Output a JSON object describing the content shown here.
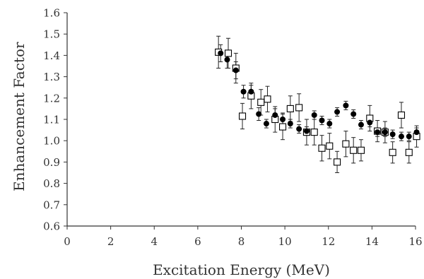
{
  "chart_data": {
    "type": "scatter",
    "xlabel": "Excitation Energy (MeV)",
    "ylabel": "Enhancement Factor",
    "xlim": [
      0,
      16
    ],
    "ylim": [
      0.6,
      1.6
    ],
    "xticks": [
      "0",
      "2",
      "4",
      "6",
      "8",
      "10",
      "12",
      "14",
      "16"
    ],
    "yticks": [
      "0.6",
      "0.7",
      "0.8",
      "0.9",
      "1.0",
      "1.1",
      "1.2",
      "1.3",
      "1.4",
      "1.5",
      "1.6"
    ],
    "grid": false,
    "legend": false,
    "series": [
      {
        "marker": "filled-circle",
        "color": "#000000",
        "points": [
          {
            "x": 7.05,
            "y": 1.41,
            "err": 0.04
          },
          {
            "x": 7.35,
            "y": 1.38,
            "err": 0.04
          },
          {
            "x": 7.75,
            "y": 1.33,
            "err": 0.04
          },
          {
            "x": 8.1,
            "y": 1.23,
            "err": 0.03
          },
          {
            "x": 8.45,
            "y": 1.23,
            "err": 0.03
          },
          {
            "x": 8.8,
            "y": 1.125,
            "err": 0.03
          },
          {
            "x": 9.15,
            "y": 1.08,
            "err": 0.02
          },
          {
            "x": 9.55,
            "y": 1.12,
            "err": 0.03
          },
          {
            "x": 9.9,
            "y": 1.1,
            "err": 0.03
          },
          {
            "x": 10.25,
            "y": 1.08,
            "err": 0.02
          },
          {
            "x": 10.65,
            "y": 1.055,
            "err": 0.02
          },
          {
            "x": 11.0,
            "y": 1.045,
            "err": 0.02
          },
          {
            "x": 11.35,
            "y": 1.12,
            "err": 0.02
          },
          {
            "x": 11.7,
            "y": 1.095,
            "err": 0.02
          },
          {
            "x": 12.05,
            "y": 1.08,
            "err": 0.02
          },
          {
            "x": 12.4,
            "y": 1.135,
            "err": 0.02
          },
          {
            "x": 12.8,
            "y": 1.165,
            "err": 0.02
          },
          {
            "x": 13.15,
            "y": 1.125,
            "err": 0.02
          },
          {
            "x": 13.5,
            "y": 1.075,
            "err": 0.02
          },
          {
            "x": 13.9,
            "y": 1.085,
            "err": 0.02
          },
          {
            "x": 14.25,
            "y": 1.04,
            "err": 0.02
          },
          {
            "x": 14.6,
            "y": 1.04,
            "err": 0.02
          },
          {
            "x": 14.95,
            "y": 1.03,
            "err": 0.02
          },
          {
            "x": 15.35,
            "y": 1.02,
            "err": 0.02
          },
          {
            "x": 15.7,
            "y": 1.02,
            "err": 0.02
          },
          {
            "x": 16.05,
            "y": 1.04,
            "err": 0.02
          }
        ]
      },
      {
        "marker": "open-square",
        "color": "#000000",
        "points": [
          {
            "x": 6.95,
            "y": 1.415,
            "err": 0.075
          },
          {
            "x": 7.4,
            "y": 1.41,
            "err": 0.07
          },
          {
            "x": 7.75,
            "y": 1.34,
            "err": 0.07
          },
          {
            "x": 8.05,
            "y": 1.115,
            "err": 0.06
          },
          {
            "x": 8.45,
            "y": 1.21,
            "err": 0.06
          },
          {
            "x": 8.9,
            "y": 1.18,
            "err": 0.06
          },
          {
            "x": 9.2,
            "y": 1.195,
            "err": 0.06
          },
          {
            "x": 9.55,
            "y": 1.1,
            "err": 0.06
          },
          {
            "x": 9.9,
            "y": 1.065,
            "err": 0.06
          },
          {
            "x": 10.25,
            "y": 1.15,
            "err": 0.06
          },
          {
            "x": 10.65,
            "y": 1.155,
            "err": 0.065
          },
          {
            "x": 11.0,
            "y": 1.04,
            "err": 0.06
          },
          {
            "x": 11.35,
            "y": 1.04,
            "err": 0.06
          },
          {
            "x": 11.7,
            "y": 0.965,
            "err": 0.06
          },
          {
            "x": 12.05,
            "y": 0.975,
            "err": 0.06
          },
          {
            "x": 12.4,
            "y": 0.9,
            "err": 0.05
          },
          {
            "x": 12.8,
            "y": 0.985,
            "err": 0.06
          },
          {
            "x": 13.15,
            "y": 0.955,
            "err": 0.06
          },
          {
            "x": 13.5,
            "y": 0.955,
            "err": 0.05
          },
          {
            "x": 13.9,
            "y": 1.105,
            "err": 0.06
          },
          {
            "x": 14.25,
            "y": 1.045,
            "err": 0.05
          },
          {
            "x": 14.6,
            "y": 1.04,
            "err": 0.05
          },
          {
            "x": 14.95,
            "y": 0.945,
            "err": 0.05
          },
          {
            "x": 15.35,
            "y": 1.12,
            "err": 0.06
          },
          {
            "x": 15.7,
            "y": 0.945,
            "err": 0.05
          },
          {
            "x": 16.05,
            "y": 1.02,
            "err": 0.05
          }
        ]
      }
    ]
  }
}
